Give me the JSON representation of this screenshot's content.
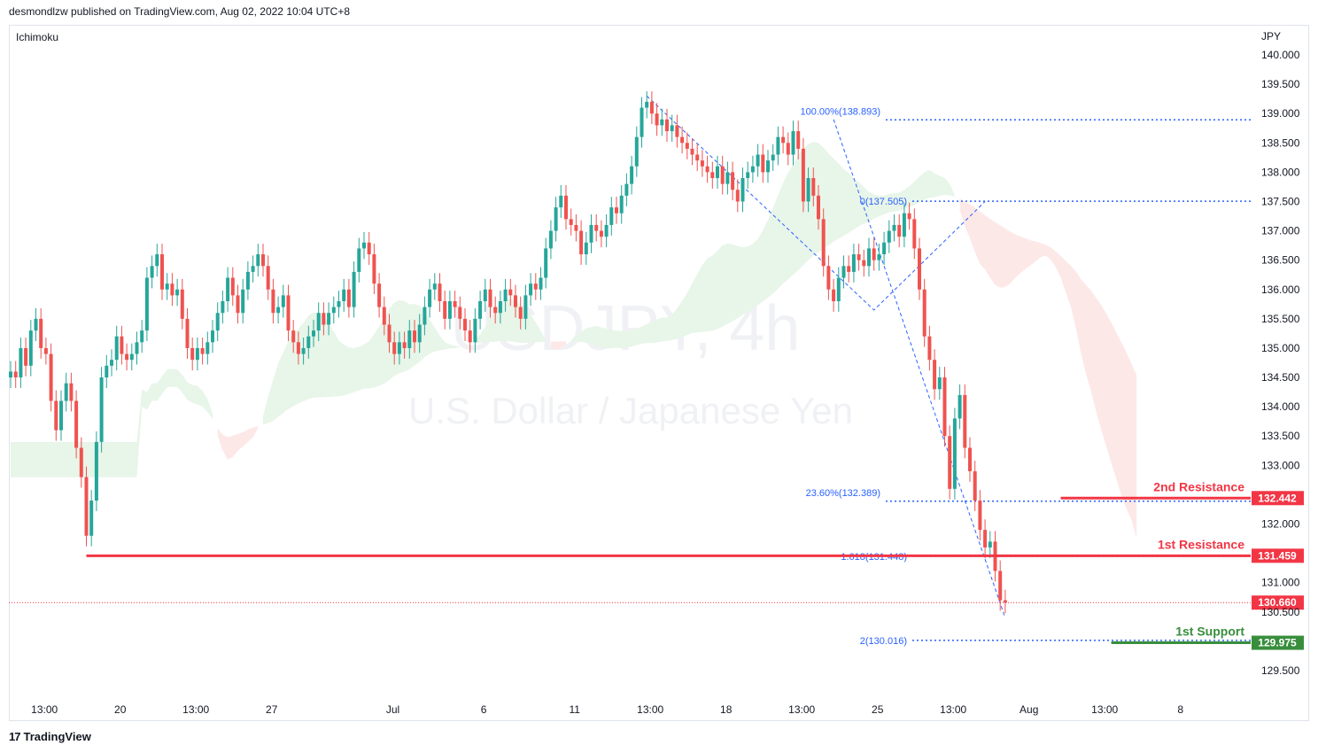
{
  "header": {
    "published": "desmondlzw published on TradingView.com, Aug 02, 2022 10:04 UTC+8"
  },
  "indicator": {
    "label": "Ichimoku"
  },
  "footer": {
    "brand": "TradingView",
    "mark": "17"
  },
  "watermark": {
    "symbol": "USDJPY, 4h",
    "name": "U.S. Dollar / Japanese Yen"
  },
  "colors": {
    "up": "#26a69a",
    "down": "#ef5350",
    "fib": "#2962ff",
    "resistance": "#f23645",
    "support": "#388e3c",
    "kumo_bull": "#e8f5e9",
    "kumo_bear": "#fde8e8"
  },
  "chart_data": {
    "type": "candlestick",
    "currency": "JPY",
    "y_range": [
      129.1,
      140.3
    ],
    "y_ticks": [
      "140.000",
      "139.500",
      "139.000",
      "138.500",
      "138.000",
      "137.500",
      "137.000",
      "136.500",
      "136.000",
      "135.500",
      "135.000",
      "134.500",
      "134.000",
      "133.500",
      "133.000",
      "132.000",
      "131.000",
      "130.500",
      "129.500"
    ],
    "x_ticks": [
      {
        "i": 6,
        "label": "13:00"
      },
      {
        "i": 21,
        "label": "20"
      },
      {
        "i": 36,
        "label": "13:00"
      },
      {
        "i": 51,
        "label": "27"
      },
      {
        "i": 75,
        "label": "Jul"
      },
      {
        "i": 93,
        "label": "6"
      },
      {
        "i": 111,
        "label": "11"
      },
      {
        "i": 126,
        "label": "13:00"
      },
      {
        "i": 141,
        "label": "18"
      },
      {
        "i": 156,
        "label": "13:00"
      },
      {
        "i": 171,
        "label": "25"
      },
      {
        "i": 186,
        "label": "13:00"
      },
      {
        "i": 201,
        "label": "Aug"
      },
      {
        "i": 216,
        "label": "13:00"
      },
      {
        "i": 231,
        "label": "8"
      }
    ],
    "candles_close": [
      134.6,
      134.5,
      135.0,
      134.7,
      135.3,
      135.5,
      135.0,
      134.9,
      134.1,
      133.6,
      134.1,
      134.4,
      134.1,
      133.3,
      132.8,
      131.8,
      132.4,
      133.4,
      134.5,
      134.7,
      134.8,
      135.2,
      134.9,
      134.8,
      134.9,
      135.1,
      135.3,
      136.2,
      136.4,
      136.6,
      136.0,
      136.1,
      135.9,
      136.0,
      135.5,
      135.0,
      134.8,
      135.0,
      134.9,
      135.1,
      135.3,
      135.6,
      135.8,
      136.2,
      135.9,
      135.6,
      136.0,
      136.3,
      136.4,
      136.6,
      136.4,
      136.0,
      135.6,
      135.7,
      135.9,
      135.3,
      135.1,
      134.9,
      135.0,
      135.2,
      135.3,
      135.6,
      135.4,
      135.6,
      135.7,
      135.8,
      136.0,
      135.7,
      136.3,
      136.7,
      136.8,
      136.6,
      136.1,
      135.7,
      135.4,
      135.1,
      134.9,
      135.1,
      135.0,
      135.3,
      135.1,
      135.4,
      135.7,
      136.0,
      136.1,
      135.8,
      135.5,
      135.8,
      135.7,
      135.5,
      135.3,
      135.1,
      135.5,
      135.8,
      136.0,
      135.7,
      135.6,
      135.8,
      136.0,
      135.9,
      135.7,
      135.5,
      135.9,
      136.1,
      136.0,
      136.2,
      136.7,
      137.0,
      137.4,
      137.6,
      137.2,
      137.1,
      137.0,
      136.6,
      136.8,
      137.1,
      137.0,
      136.9,
      137.1,
      137.4,
      137.3,
      137.6,
      137.8,
      138.1,
      138.6,
      139.1,
      139.2,
      139.0,
      138.8,
      138.9,
      138.7,
      138.8,
      138.6,
      138.5,
      138.4,
      138.3,
      138.2,
      138.1,
      138.0,
      137.9,
      138.1,
      137.8,
      138.0,
      137.7,
      137.5,
      137.9,
      138.0,
      138.1,
      138.3,
      138.0,
      138.2,
      138.3,
      138.6,
      138.5,
      138.3,
      138.7,
      138.4,
      137.5,
      137.9,
      137.6,
      137.2,
      136.4,
      136.0,
      135.8,
      136.2,
      136.4,
      136.3,
      136.6,
      136.5,
      136.4,
      136.7,
      136.5,
      136.6,
      136.8,
      137.0,
      137.1,
      136.9,
      137.3,
      137.2,
      136.7,
      136.0,
      135.2,
      134.8,
      134.3,
      134.5,
      133.5,
      132.6,
      133.8,
      134.2,
      133.3,
      132.9,
      132.4,
      131.9,
      131.6,
      131.7,
      131.2,
      130.7,
      130.66
    ],
    "candles_open": [
      134.5,
      134.6,
      134.5,
      135.0,
      134.7,
      135.3,
      135.5,
      135.0,
      134.9,
      134.1,
      133.6,
      134.1,
      134.4,
      134.1,
      133.3,
      132.8,
      131.8,
      132.4,
      133.4,
      134.5,
      134.7,
      134.8,
      135.2,
      134.9,
      134.8,
      134.9,
      135.1,
      135.3,
      136.2,
      136.4,
      136.6,
      136.0,
      136.1,
      135.9,
      136.0,
      135.5,
      135.0,
      134.8,
      135.0,
      134.9,
      135.1,
      135.3,
      135.6,
      135.8,
      136.2,
      135.9,
      135.6,
      136.0,
      136.3,
      136.4,
      136.6,
      136.4,
      136.0,
      135.6,
      135.7,
      135.9,
      135.3,
      135.1,
      134.9,
      135.0,
      135.2,
      135.3,
      135.6,
      135.4,
      135.6,
      135.7,
      135.8,
      136.0,
      135.7,
      136.3,
      136.7,
      136.8,
      136.6,
      136.1,
      135.7,
      135.4,
      135.1,
      134.9,
      135.1,
      135.0,
      135.3,
      135.1,
      135.4,
      135.7,
      136.0,
      136.1,
      135.8,
      135.5,
      135.8,
      135.7,
      135.5,
      135.3,
      135.1,
      135.5,
      135.8,
      136.0,
      135.7,
      135.6,
      135.8,
      136.0,
      135.9,
      135.7,
      135.5,
      135.9,
      136.1,
      136.0,
      136.2,
      136.7,
      137.0,
      137.4,
      137.6,
      137.2,
      137.1,
      137.0,
      136.6,
      136.8,
      137.1,
      137.0,
      136.9,
      137.1,
      137.4,
      137.3,
      137.6,
      137.8,
      138.1,
      138.6,
      139.1,
      139.2,
      139.0,
      138.8,
      138.9,
      138.7,
      138.8,
      138.6,
      138.5,
      138.4,
      138.3,
      138.2,
      138.1,
      138.0,
      137.9,
      138.1,
      137.8,
      138.0,
      137.7,
      137.5,
      137.9,
      138.0,
      138.1,
      138.3,
      138.0,
      138.2,
      138.3,
      138.6,
      138.5,
      138.3,
      138.7,
      138.4,
      137.5,
      137.9,
      137.6,
      137.2,
      136.4,
      136.0,
      135.8,
      136.2,
      136.4,
      136.3,
      136.6,
      136.5,
      136.4,
      136.7,
      136.5,
      136.6,
      136.8,
      137.0,
      137.1,
      136.9,
      137.3,
      137.2,
      136.7,
      136.0,
      135.2,
      134.8,
      134.3,
      134.5,
      133.5,
      132.6,
      133.8,
      134.2,
      133.3,
      132.9,
      132.4,
      131.9,
      131.6,
      131.7,
      131.2,
      130.7
    ],
    "fib_retracement": [
      {
        "label": "100.00%(138.893)",
        "value": 138.893
      },
      {
        "label": "23.60%(132.389)",
        "value": 132.389
      }
    ],
    "fib_extension": [
      {
        "label": "0(137.505)",
        "value": 137.505
      },
      {
        "label": "1.618(131.448)",
        "value": 131.448
      },
      {
        "label": "2(130.016)",
        "value": 130.016
      }
    ],
    "levels": [
      {
        "name": "2nd Resistance",
        "value": 132.442,
        "tag": "132.442",
        "kind": "resistance"
      },
      {
        "name": "1st Resistance",
        "value": 131.459,
        "tag": "131.459",
        "kind": "resistance"
      },
      {
        "name": "1st Support",
        "value": 129.975,
        "tag": "129.975",
        "kind": "support"
      }
    ],
    "last_price": {
      "value": 130.66,
      "tag": "130.660"
    }
  }
}
